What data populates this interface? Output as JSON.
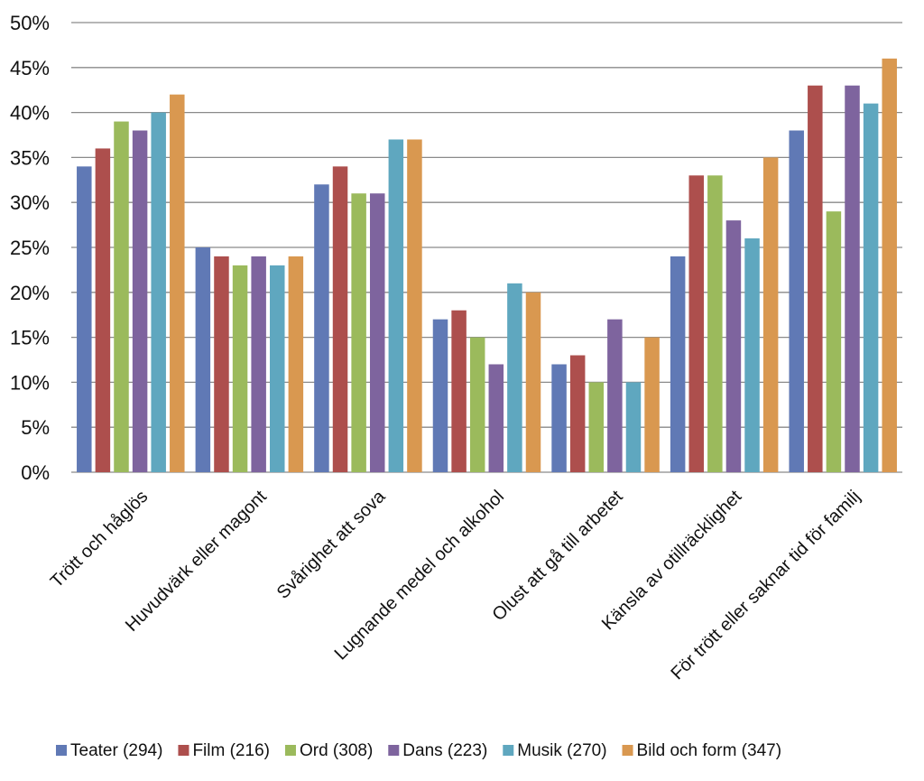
{
  "chart_data": {
    "type": "bar",
    "categories": [
      "Trött och håglös",
      "Huvudvärk eller magont",
      "Svårighet att sova",
      "Lugnande medel och alkohol",
      "Olust att gå till arbetet",
      "Känsla av otillräcklighet",
      "För trött eller saknar tid för familj"
    ],
    "series": [
      {
        "name": "Teater (294)",
        "color": "#6079b5",
        "values": [
          34,
          25,
          32,
          17,
          12,
          24,
          38
        ]
      },
      {
        "name": "Film (216)",
        "color": "#ad4f4d",
        "values": [
          36,
          24,
          34,
          18,
          13,
          33,
          43
        ]
      },
      {
        "name": "Ord (308)",
        "color": "#9bba5c",
        "values": [
          39,
          23,
          31,
          15,
          10,
          33,
          29
        ]
      },
      {
        "name": "Dans (223)",
        "color": "#7e649e",
        "values": [
          38,
          24,
          31,
          12,
          17,
          28,
          43
        ]
      },
      {
        "name": "Musik (270)",
        "color": "#5fa7bf",
        "values": [
          40,
          23,
          37,
          21,
          10,
          26,
          41
        ]
      },
      {
        "name": "Bild och form (347)",
        "color": "#d99850",
        "values": [
          42,
          24,
          37,
          20,
          15,
          35,
          46
        ]
      }
    ],
    "ylim": [
      0,
      50
    ],
    "yticks": [
      "0%",
      "5%",
      "10%",
      "15%",
      "20%",
      "25%",
      "30%",
      "35%",
      "40%",
      "45%",
      "50%"
    ],
    "grid": true,
    "legend_position": "bottom"
  }
}
